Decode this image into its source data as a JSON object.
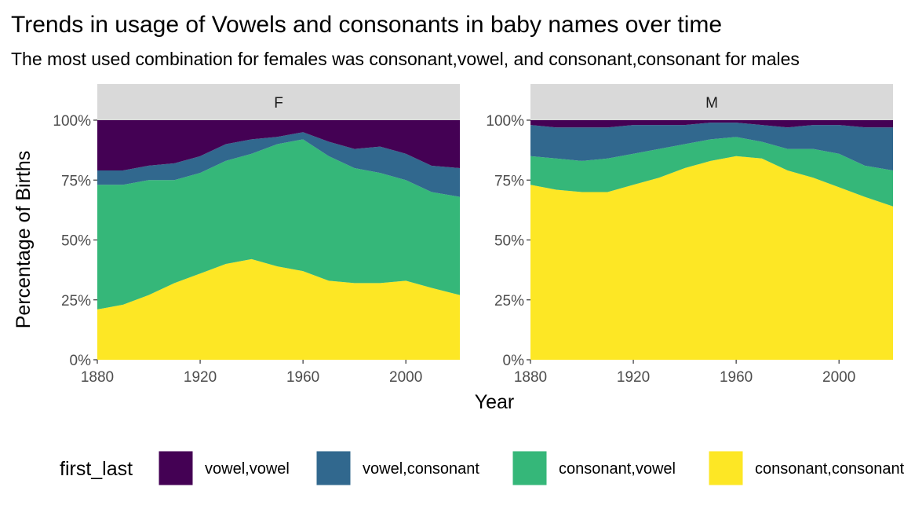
{
  "chart_data": {
    "type": "area",
    "stacked": true,
    "percent_stacked": true,
    "title": "Trends in usage of Vowels and consonants in baby names over time",
    "subtitle": "The most used combination for females was consonant,vowel, and consonant,consonant for males",
    "xlabel": "Year",
    "ylabel": "Percentage of Births",
    "xlim": [
      1880,
      2021
    ],
    "ylim": [
      0,
      1
    ],
    "x_ticks": [
      "1880",
      "1920",
      "1960",
      "2000"
    ],
    "y_ticks": [
      "0%",
      "25%",
      "50%",
      "75%",
      "100%"
    ],
    "grid": false,
    "legend": {
      "title": "first_last",
      "position": "bottom",
      "entries": [
        "vowel,vowel",
        "vowel,consonant",
        "consonant,vowel",
        "consonant,consonant"
      ]
    },
    "colors": {
      "vowel,vowel": "#440154",
      "vowel,consonant": "#31688E",
      "consonant,vowel": "#35B779",
      "consonant,consonant": "#FDE725"
    },
    "x": [
      1880,
      1890,
      1900,
      1910,
      1920,
      1930,
      1940,
      1950,
      1960,
      1970,
      1980,
      1990,
      2000,
      2010,
      2021
    ],
    "panels": [
      {
        "label": "F",
        "series": [
          {
            "name": "consonant,consonant",
            "values": [
              0.21,
              0.23,
              0.27,
              0.32,
              0.36,
              0.4,
              0.42,
              0.39,
              0.37,
              0.33,
              0.32,
              0.32,
              0.33,
              0.3,
              0.27
            ]
          },
          {
            "name": "consonant,vowel",
            "values": [
              0.52,
              0.5,
              0.48,
              0.43,
              0.42,
              0.43,
              0.44,
              0.51,
              0.55,
              0.52,
              0.48,
              0.46,
              0.42,
              0.4,
              0.41
            ]
          },
          {
            "name": "vowel,consonant",
            "values": [
              0.06,
              0.06,
              0.06,
              0.07,
              0.07,
              0.07,
              0.06,
              0.03,
              0.03,
              0.06,
              0.08,
              0.11,
              0.11,
              0.11,
              0.12
            ]
          },
          {
            "name": "vowel,vowel",
            "values": [
              0.21,
              0.21,
              0.19,
              0.18,
              0.15,
              0.1,
              0.08,
              0.07,
              0.05,
              0.09,
              0.12,
              0.11,
              0.14,
              0.19,
              0.2
            ]
          }
        ]
      },
      {
        "label": "M",
        "series": [
          {
            "name": "consonant,consonant",
            "values": [
              0.73,
              0.71,
              0.7,
              0.7,
              0.73,
              0.76,
              0.8,
              0.83,
              0.85,
              0.84,
              0.79,
              0.76,
              0.72,
              0.68,
              0.64
            ]
          },
          {
            "name": "consonant,vowel",
            "values": [
              0.12,
              0.13,
              0.13,
              0.14,
              0.13,
              0.12,
              0.1,
              0.09,
              0.08,
              0.07,
              0.09,
              0.12,
              0.14,
              0.13,
              0.15
            ]
          },
          {
            "name": "vowel,consonant",
            "values": [
              0.13,
              0.13,
              0.14,
              0.13,
              0.12,
              0.1,
              0.08,
              0.07,
              0.06,
              0.07,
              0.09,
              0.1,
              0.12,
              0.16,
              0.18
            ]
          },
          {
            "name": "vowel,vowel",
            "values": [
              0.02,
              0.03,
              0.03,
              0.03,
              0.02,
              0.02,
              0.02,
              0.01,
              0.01,
              0.02,
              0.03,
              0.02,
              0.02,
              0.03,
              0.03
            ]
          }
        ]
      }
    ]
  }
}
